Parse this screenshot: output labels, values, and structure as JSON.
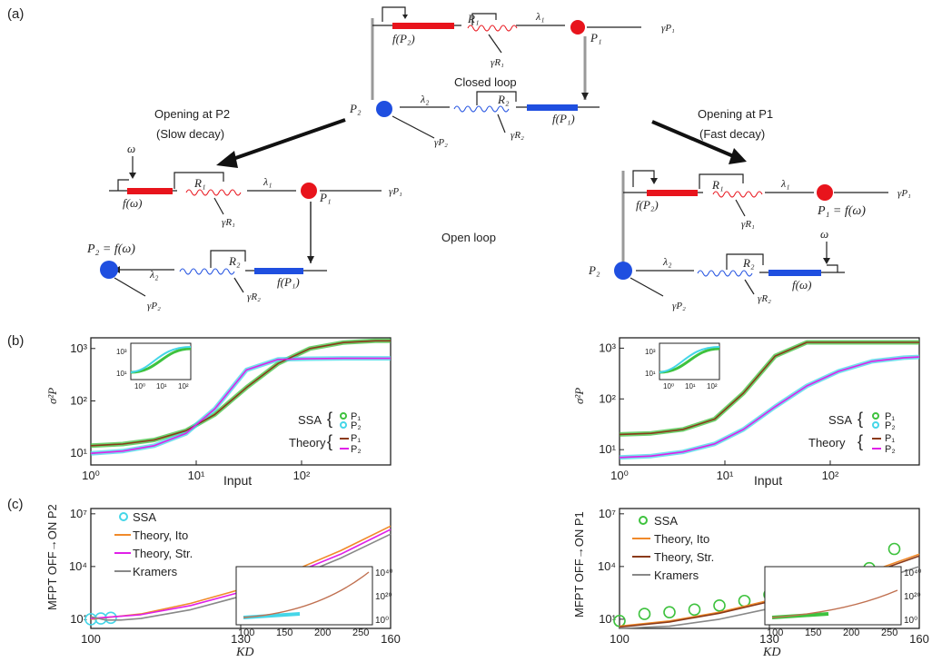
{
  "panel_labels": {
    "a": "(a)",
    "b": "(b)",
    "c": "(c)"
  },
  "diagram": {
    "closed_loop": "Closed loop",
    "open_loop": "Open loop",
    "opening_p2": "Opening at P2",
    "opening_p2_sub": "(Slow decay)",
    "opening_p1": "Opening at P1",
    "opening_p1_sub": "(Fast decay)",
    "f_p2": "f(P₂)",
    "f_p1": "f(P₁)",
    "f_omega": "f(ω)",
    "R1": "R₁",
    "R2": "R₂",
    "lambda1": "λ₁",
    "lambda2": "λ₂",
    "P1": "P₁",
    "P2": "P₂",
    "gamma_P1": "γP₁",
    "gamma_P2": "γP₂",
    "gamma_R1": "γR₁",
    "gamma_R2": "γR₂",
    "omega": "ω",
    "P2_eq": "P₂ = f(ω)",
    "P1_eq": "P₁ = f(ω)",
    "colors": {
      "p1": "#e8141c",
      "p2": "#1f4fe0"
    }
  },
  "panel_b": {
    "ylabel": "σ²P",
    "xlabel": "Input",
    "legend": {
      "ssa": "SSA",
      "theory": "Theory",
      "p1": "P₁",
      "p2": "P₂"
    },
    "xticks": [
      "10⁰",
      "10¹",
      "10²"
    ],
    "yticks": [
      "10¹",
      "10²",
      "10³"
    ],
    "inset_xticks": [
      "10⁰",
      "10¹",
      "10²"
    ],
    "inset_yticks": [
      "10¹",
      "10³"
    ]
  },
  "panel_c": {
    "left": {
      "ylabel": "MFPT OFF→ON P2",
      "xlabel": "KD",
      "xticks": [
        "100",
        "130",
        "160"
      ],
      "yticks": [
        "10¹",
        "10⁴",
        "10⁷"
      ],
      "inset_xticks": [
        "100",
        "150",
        "200",
        "250"
      ],
      "inset_yticks": [
        "10⁰",
        "10²⁰",
        "10⁴⁰"
      ],
      "legend": [
        "SSA",
        "Theory, Ito",
        "Theory, Str.",
        "Kramers"
      ]
    },
    "right": {
      "ylabel": "MFPT OFF→ON P1",
      "xlabel": "KD",
      "xticks": [
        "100",
        "130",
        "160"
      ],
      "yticks": [
        "10¹",
        "10⁴",
        "10⁷"
      ],
      "inset_xticks": [
        "100",
        "150",
        "200",
        "250"
      ],
      "inset_yticks": [
        "10⁰",
        "10²⁰",
        "10⁴⁰"
      ],
      "legend": [
        "SSA",
        "Theory, Ito",
        "Theory, Str.",
        "Kramers"
      ]
    }
  },
  "chart_data": [
    {
      "type": "line",
      "id": "b-left",
      "x_scale": "log",
      "y_scale": "log",
      "xlim": [
        1,
        700
      ],
      "ylim": [
        6,
        1600
      ],
      "series": [
        {
          "name": "P₁",
          "kind": "ssa",
          "color": "#3ec23e",
          "x": [
            1,
            2,
            4,
            8,
            15,
            30,
            60,
            120,
            250,
            500,
            700
          ],
          "y": [
            14,
            15,
            18,
            27,
            55,
            180,
            520,
            1000,
            1300,
            1400,
            1400
          ]
        },
        {
          "name": "P₂",
          "kind": "ssa",
          "color": "#45d6e8",
          "x": [
            1,
            2,
            4,
            8,
            15,
            30,
            60,
            120,
            250,
            500,
            700
          ],
          "y": [
            10,
            11,
            14,
            24,
            70,
            390,
            620,
            640,
            650,
            650,
            650
          ]
        },
        {
          "name": "P₁",
          "kind": "theory",
          "color": "#8b3a1a",
          "x": [
            1,
            2,
            4,
            8,
            15,
            30,
            60,
            120,
            250,
            500,
            700
          ],
          "y": [
            14,
            15,
            18,
            27,
            55,
            180,
            520,
            1000,
            1300,
            1400,
            1400
          ]
        },
        {
          "name": "P₂",
          "kind": "theory",
          "color": "#e020e8",
          "x": [
            1,
            2,
            4,
            8,
            15,
            30,
            60,
            120,
            250,
            500,
            700
          ],
          "y": [
            10,
            11,
            14,
            24,
            70,
            390,
            620,
            640,
            650,
            650,
            650
          ]
        }
      ]
    },
    {
      "type": "line",
      "id": "b-right",
      "x_scale": "log",
      "y_scale": "log",
      "xlim": [
        1,
        700
      ],
      "ylim": [
        5,
        1600
      ],
      "series": [
        {
          "name": "P₁",
          "kind": "ssa",
          "color": "#3ec23e",
          "x": [
            1,
            2,
            4,
            8,
            15,
            30,
            60,
            120,
            250,
            500,
            700
          ],
          "y": [
            20,
            21,
            25,
            40,
            130,
            700,
            1300,
            1300,
            1300,
            1300,
            1300
          ]
        },
        {
          "name": "P₂",
          "kind": "ssa",
          "color": "#45d6e8",
          "x": [
            1,
            2,
            4,
            8,
            15,
            30,
            60,
            120,
            250,
            500,
            700
          ],
          "y": [
            7,
            7.5,
            9,
            13,
            25,
            70,
            180,
            350,
            550,
            650,
            670
          ]
        },
        {
          "name": "P₁",
          "kind": "theory",
          "color": "#8b3a1a",
          "x": [
            1,
            2,
            4,
            8,
            15,
            30,
            60,
            120,
            250,
            500,
            700
          ],
          "y": [
            20,
            21,
            25,
            40,
            130,
            700,
            1300,
            1300,
            1300,
            1300,
            1300
          ]
        },
        {
          "name": "P₂",
          "kind": "theory",
          "color": "#e020e8",
          "x": [
            1,
            2,
            4,
            8,
            15,
            30,
            60,
            120,
            250,
            500,
            700
          ],
          "y": [
            7,
            7.5,
            9,
            13,
            25,
            70,
            180,
            350,
            550,
            650,
            670
          ]
        }
      ]
    },
    {
      "type": "line",
      "id": "c-left",
      "x_scale": "linear",
      "y_scale": "log",
      "xlim": [
        100,
        160
      ],
      "ylim": [
        3,
        20000000
      ],
      "series": [
        {
          "name": "SSA",
          "kind": "ssa",
          "color": "#45d6e8",
          "x": [
            100,
            102,
            104
          ],
          "y": [
            10,
            11,
            12
          ]
        },
        {
          "name": "Theory, Ito",
          "kind": "line",
          "color": "#f08a2a",
          "x": [
            100,
            110,
            120,
            130,
            140,
            150,
            160
          ],
          "y": [
            10,
            20,
            80,
            500,
            5000,
            80000,
            2000000
          ]
        },
        {
          "name": "Theory, Str.",
          "kind": "line",
          "color": "#e020e8",
          "x": [
            100,
            110,
            120,
            130,
            140,
            150,
            160
          ],
          "y": [
            11,
            18,
            60,
            350,
            3500,
            50000,
            1300000
          ]
        },
        {
          "name": "Kramers",
          "kind": "line",
          "color": "#888888",
          "x": [
            100,
            103,
            106,
            110,
            120,
            130,
            140,
            150,
            160
          ],
          "y": [
            14,
            9,
            9,
            11,
            35,
            200,
            2000,
            30000,
            700000
          ]
        }
      ]
    },
    {
      "type": "line",
      "id": "c-right",
      "x_scale": "linear",
      "y_scale": "log",
      "xlim": [
        100,
        160
      ],
      "ylim": [
        3,
        20000000
      ],
      "series": [
        {
          "name": "SSA",
          "kind": "ssa",
          "color": "#3ec23e",
          "x": [
            100,
            105,
            110,
            115,
            120,
            125,
            130,
            135,
            140,
            145,
            150,
            155
          ],
          "y": [
            8,
            20,
            25,
            35,
            60,
            110,
            250,
            500,
            1100,
            3000,
            8000,
            100000
          ]
        },
        {
          "name": "Theory, Ito",
          "kind": "line",
          "color": "#f08a2a",
          "x": [
            100,
            110,
            120,
            130,
            140,
            150,
            160
          ],
          "y": [
            4,
            8,
            25,
            120,
            700,
            5000,
            50000
          ]
        },
        {
          "name": "Theory, Str.",
          "kind": "line",
          "color": "#8b3a1a",
          "x": [
            100,
            110,
            120,
            130,
            140,
            150,
            160
          ],
          "y": [
            3.6,
            7,
            22,
            100,
            600,
            4000,
            40000
          ]
        },
        {
          "name": "Kramers",
          "kind": "line",
          "color": "#888888",
          "x": [
            100,
            110,
            120,
            130,
            140,
            150,
            160
          ],
          "y": [
            3,
            4,
            10,
            40,
            200,
            1200,
            10000
          ]
        }
      ]
    }
  ]
}
